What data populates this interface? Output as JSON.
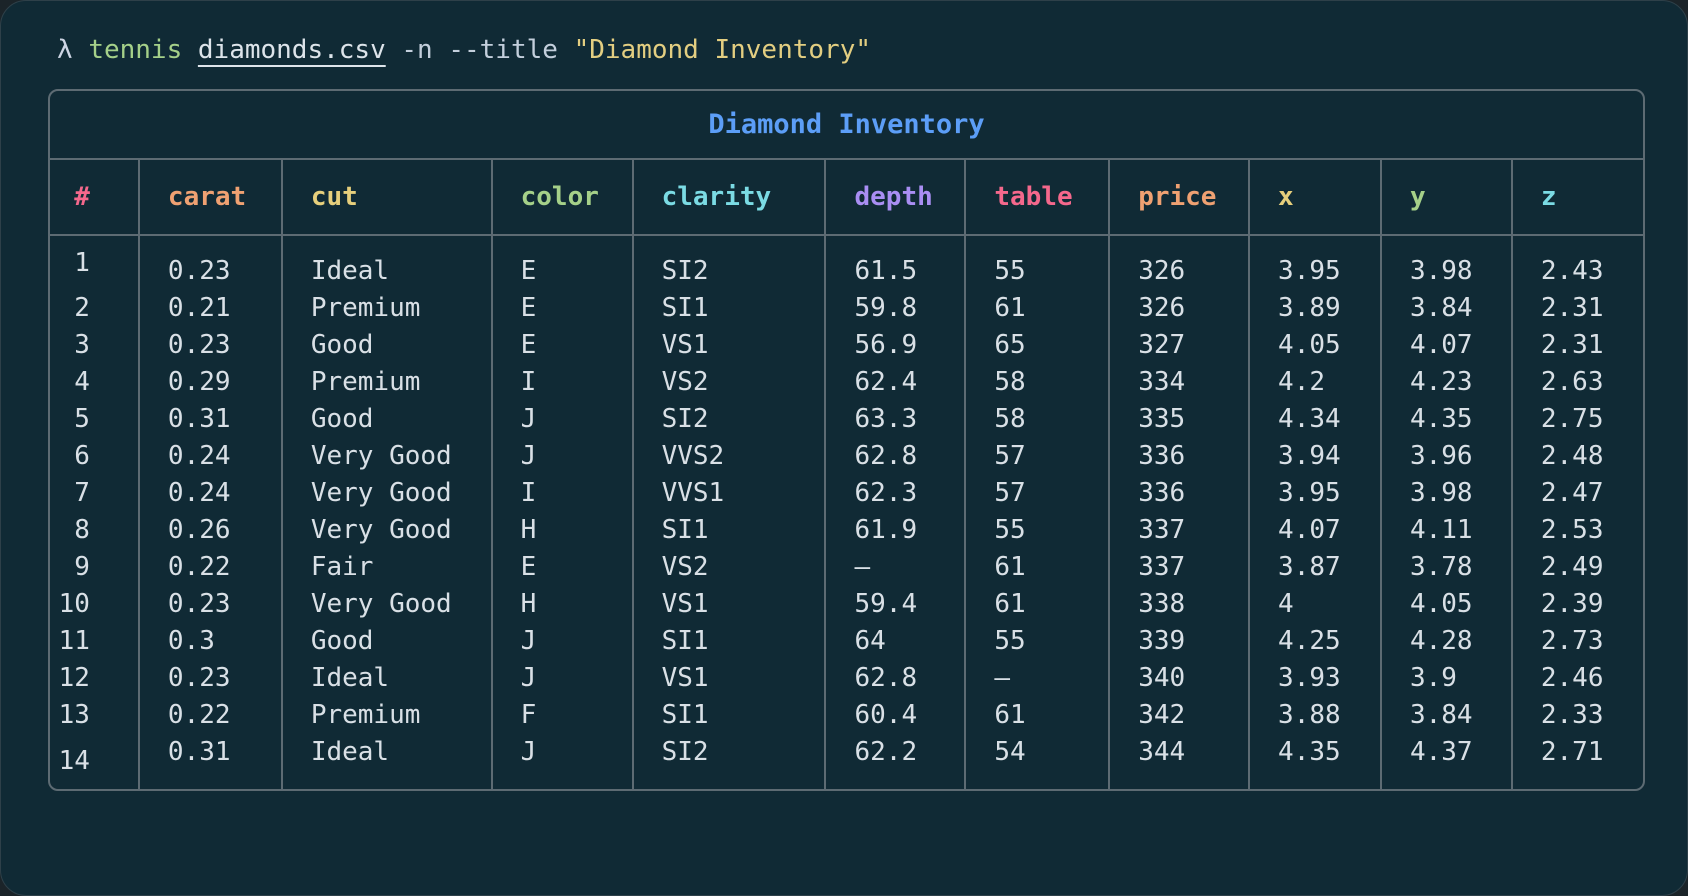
{
  "terminal": {
    "prompt": "λ",
    "command": "tennis",
    "file_arg": "diamonds.csv",
    "flags": "-n --title",
    "quoted_arg": "\"Diamond Inventory\""
  },
  "table": {
    "title": "Diamond Inventory",
    "missing_value_glyph": "—",
    "columns": [
      {
        "label": "#",
        "color": "#f4688c"
      },
      {
        "label": "carat",
        "color": "#efa172"
      },
      {
        "label": "cut",
        "color": "#e6cf7c"
      },
      {
        "label": "color",
        "color": "#a5d089"
      },
      {
        "label": "clarity",
        "color": "#7bdbe4"
      },
      {
        "label": "depth",
        "color": "#a98ef3"
      },
      {
        "label": "table",
        "color": "#f4688c"
      },
      {
        "label": "price",
        "color": "#efa172"
      },
      {
        "label": "x",
        "color": "#e6cf7c"
      },
      {
        "label": "y",
        "color": "#a5d089"
      },
      {
        "label": "z",
        "color": "#7bdbe4"
      }
    ],
    "rows": [
      [
        "1",
        "0.23",
        "Ideal",
        "E",
        "SI2",
        "61.5",
        "55",
        "326",
        "3.95",
        "3.98",
        "2.43"
      ],
      [
        "2",
        "0.21",
        "Premium",
        "E",
        "SI1",
        "59.8",
        "61",
        "326",
        "3.89",
        "3.84",
        "2.31"
      ],
      [
        "3",
        "0.23",
        "Good",
        "E",
        "VS1",
        "56.9",
        "65",
        "327",
        "4.05",
        "4.07",
        "2.31"
      ],
      [
        "4",
        "0.29",
        "Premium",
        "I",
        "VS2",
        "62.4",
        "58",
        "334",
        "4.2",
        "4.23",
        "2.63"
      ],
      [
        "5",
        "0.31",
        "Good",
        "J",
        "SI2",
        "63.3",
        "58",
        "335",
        "4.34",
        "4.35",
        "2.75"
      ],
      [
        "6",
        "0.24",
        "Very Good",
        "J",
        "VVS2",
        "62.8",
        "57",
        "336",
        "3.94",
        "3.96",
        "2.48"
      ],
      [
        "7",
        "0.24",
        "Very Good",
        "I",
        "VVS1",
        "62.3",
        "57",
        "336",
        "3.95",
        "3.98",
        "2.47"
      ],
      [
        "8",
        "0.26",
        "Very Good",
        "H",
        "SI1",
        "61.9",
        "55",
        "337",
        "4.07",
        "4.11",
        "2.53"
      ],
      [
        "9",
        "0.22",
        "Fair",
        "E",
        "VS2",
        "—",
        "61",
        "337",
        "3.87",
        "3.78",
        "2.49"
      ],
      [
        "10",
        "0.23",
        "Very Good",
        "H",
        "VS1",
        "59.4",
        "61",
        "338",
        "4",
        "4.05",
        "2.39"
      ],
      [
        "11",
        "0.3",
        "Good",
        "J",
        "SI1",
        "64",
        "55",
        "339",
        "4.25",
        "4.28",
        "2.73"
      ],
      [
        "12",
        "0.23",
        "Ideal",
        "J",
        "VS1",
        "62.8",
        "—",
        "340",
        "3.93",
        "3.9",
        "2.46"
      ],
      [
        "13",
        "0.22",
        "Premium",
        "F",
        "SI1",
        "60.4",
        "61",
        "342",
        "3.88",
        "3.84",
        "2.33"
      ],
      [
        "14",
        "0.31",
        "Ideal",
        "J",
        "SI2",
        "62.2",
        "54",
        "344",
        "4.35",
        "4.37",
        "2.71"
      ]
    ]
  },
  "colors": {
    "window_bg": "#102a35",
    "page_bg": "#1b2429",
    "border": "#5d6b73",
    "title": "#5c9ef7",
    "body_text": "#d9e0e6",
    "muted_text": "#5e6d77"
  }
}
